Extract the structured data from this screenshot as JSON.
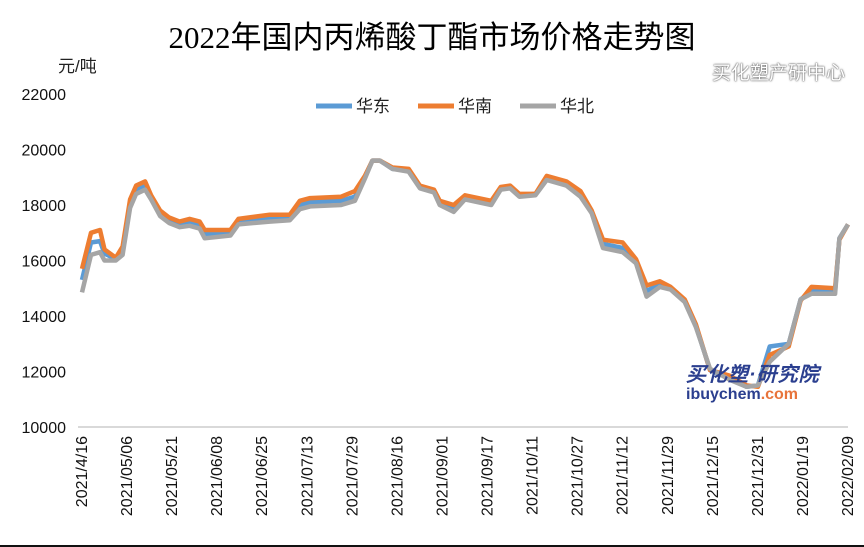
{
  "chart_data": {
    "type": "line",
    "title": "2022年国内丙烯酸丁酯市场价格走势图",
    "ylabel": "元/吨",
    "ylim": [
      10000,
      22000
    ],
    "yticks": [
      10000,
      12000,
      14000,
      16000,
      18000,
      20000,
      22000
    ],
    "xtick_labels": [
      "2021/4/16",
      "2021/05/06",
      "2021/05/21",
      "2021/06/08",
      "2021/06/25",
      "2021/07/13",
      "2021/07/29",
      "2021/08/16",
      "2021/09/01",
      "2021/09/17",
      "2021/10/11",
      "2021/10/27",
      "2021/11/12",
      "2021/11/29",
      "2021/12/15",
      "2021/12/31",
      "2022/01/19",
      "2022/02/09"
    ],
    "grid": false,
    "legend_position": "top",
    "dates": [
      "2021-04-16",
      "2021-04-20",
      "2021-04-24",
      "2021-04-26",
      "2021-05-01",
      "2021-05-04",
      "2021-05-07",
      "2021-05-09",
      "2021-05-12",
      "2021-05-14",
      "2021-05-17",
      "2021-05-20",
      "2021-05-24",
      "2021-05-28",
      "2021-06-01",
      "2021-06-03",
      "2021-06-13",
      "2021-06-16",
      "2021-06-28",
      "2021-07-06",
      "2021-07-10",
      "2021-07-14",
      "2021-07-25",
      "2021-07-30",
      "2021-08-03",
      "2021-08-06",
      "2021-08-09",
      "2021-08-14",
      "2021-08-20",
      "2021-08-24",
      "2021-08-29",
      "2021-08-31",
      "2021-09-05",
      "2021-09-09",
      "2021-09-19",
      "2021-09-24",
      "2021-09-29",
      "2021-10-04",
      "2021-10-12",
      "2021-10-16",
      "2021-10-23",
      "2021-10-28",
      "2021-11-01",
      "2021-11-05",
      "2021-11-12",
      "2021-11-17",
      "2021-11-21",
      "2021-11-26",
      "2021-11-30",
      "2021-12-05",
      "2021-12-09",
      "2021-12-14",
      "2021-12-21",
      "2021-12-27",
      "2021-12-31",
      "2022-01-05",
      "2022-01-13",
      "2022-01-18",
      "2022-01-23",
      "2022-02-03",
      "2022-02-05",
      "2022-02-09"
    ],
    "series": [
      {
        "name": "华东",
        "color": "#5b9bd5",
        "values": [
          15300,
          16650,
          16700,
          16250,
          16050,
          16350,
          18050,
          18550,
          18700,
          18250,
          17700,
          17450,
          17300,
          17350,
          17250,
          16950,
          17000,
          17400,
          17500,
          17550,
          18000,
          18100,
          18150,
          18300,
          19000,
          19600,
          19600,
          19300,
          19250,
          18650,
          18500,
          18100,
          17900,
          18250,
          18100,
          18600,
          18650,
          18350,
          18400,
          18950,
          18750,
          18400,
          17750,
          16600,
          16450,
          15950,
          14900,
          15150,
          15000,
          14550,
          13650,
          12050,
          11750,
          11450,
          11500,
          12900,
          13000,
          14600,
          14900,
          14900,
          16800,
          17300
        ]
      },
      {
        "name": "华南",
        "color": "#ed7d31",
        "values": [
          15700,
          17000,
          17100,
          16400,
          16100,
          16500,
          18200,
          18700,
          18850,
          18350,
          17800,
          17550,
          17400,
          17500,
          17400,
          17100,
          17100,
          17500,
          17650,
          17650,
          18150,
          18250,
          18300,
          18500,
          19050,
          19600,
          19600,
          19350,
          19300,
          18700,
          18550,
          18150,
          18000,
          18350,
          18150,
          18650,
          18700,
          18400,
          18400,
          19050,
          18850,
          18500,
          17800,
          16750,
          16650,
          16050,
          15100,
          15250,
          15050,
          14600,
          13700,
          12050,
          11850,
          11500,
          11450,
          12600,
          12900,
          14550,
          15050,
          15000,
          16750,
          17300
        ]
      },
      {
        "name": "华北",
        "color": "#a5a5a5",
        "values": [
          14850,
          16200,
          16300,
          16000,
          16000,
          16200,
          17900,
          18400,
          18550,
          18200,
          17600,
          17350,
          17200,
          17250,
          17150,
          16800,
          16900,
          17300,
          17400,
          17450,
          17850,
          17950,
          18000,
          18150,
          18950,
          19600,
          19600,
          19300,
          19200,
          18600,
          18450,
          18000,
          17750,
          18200,
          18000,
          18550,
          18600,
          18300,
          18350,
          18900,
          18700,
          18300,
          17700,
          16450,
          16300,
          15900,
          14700,
          15050,
          14950,
          14500,
          13600,
          12100,
          11700,
          11450,
          11500,
          12350,
          13000,
          14600,
          14800,
          14800,
          16800,
          17300
        ]
      }
    ]
  },
  "watermark": {
    "brand": "买化塑·研究院",
    "site_main": "ibuychem",
    "site_tld": ".com",
    "wechat": "买化塑产研中心"
  }
}
